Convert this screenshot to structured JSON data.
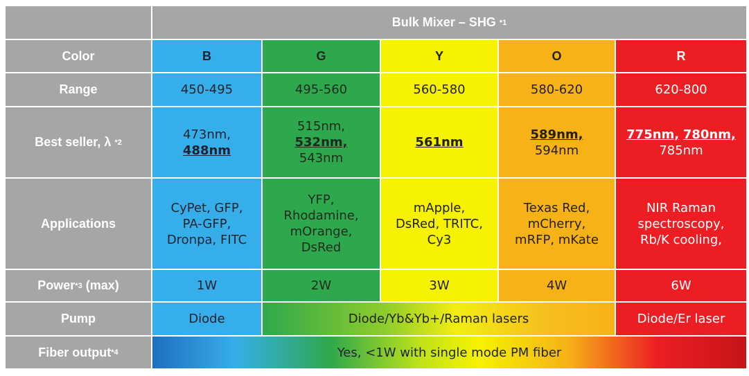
{
  "header": {
    "title": "Bulk Mixer – SHG",
    "title_note": "*1"
  },
  "row_labels": {
    "color": "Color",
    "range": "Range",
    "best_seller": "Best seller, λ",
    "best_seller_note": "*2",
    "applications": "Applications",
    "power": "Power",
    "power_note": "*3",
    "power_suffix": "(max)",
    "pump": "Pump",
    "fiber": "Fiber output",
    "fiber_note": "*4"
  },
  "columns": [
    {
      "color": "B",
      "range": "450-495",
      "best": [
        "473nm,",
        "488nm"
      ],
      "apps": [
        "CyPet, GFP,",
        "PA-GFP,",
        "Dronpa, FITC"
      ],
      "power": "1W",
      "pump": "Diode"
    },
    {
      "color": "G",
      "range": "495-560",
      "best": [
        "515nm,",
        "532nm,",
        "543nm"
      ],
      "apps": [
        "YFP,",
        "Rhodamine,",
        "mOrange,",
        "DsRed"
      ],
      "power": "2W"
    },
    {
      "color": "Y",
      "range": "560-580",
      "best": [
        "561nm"
      ],
      "apps": [
        "mApple,",
        "DsRed, TRITC,",
        "Cy3"
      ],
      "power": "3W"
    },
    {
      "color": "O",
      "range": "580-620",
      "best": [
        "589nm,",
        "594nm"
      ],
      "apps": [
        "Texas Red,",
        "mCherry,",
        "mRFP, mKate"
      ],
      "power": "4W"
    },
    {
      "color": "R",
      "range": "620-800",
      "best": [
        "775nm,",
        "780nm,",
        "785nm"
      ],
      "apps": [
        "NIR Raman",
        "spectroscopy,",
        "Rb/K cooling,"
      ],
      "power": "6W",
      "pump": "Diode/Er laser"
    }
  ],
  "pump_shared": "Diode/Yb&Yb+/Raman lasers",
  "fiber_output": "Yes, <1W with single mode PM fiber",
  "colors": {
    "B": "#36aee9",
    "G": "#2ea84c",
    "Y": "#f6f200",
    "O": "#f6b217",
    "R": "#ec1e24",
    "header": "#a6a6a6"
  }
}
